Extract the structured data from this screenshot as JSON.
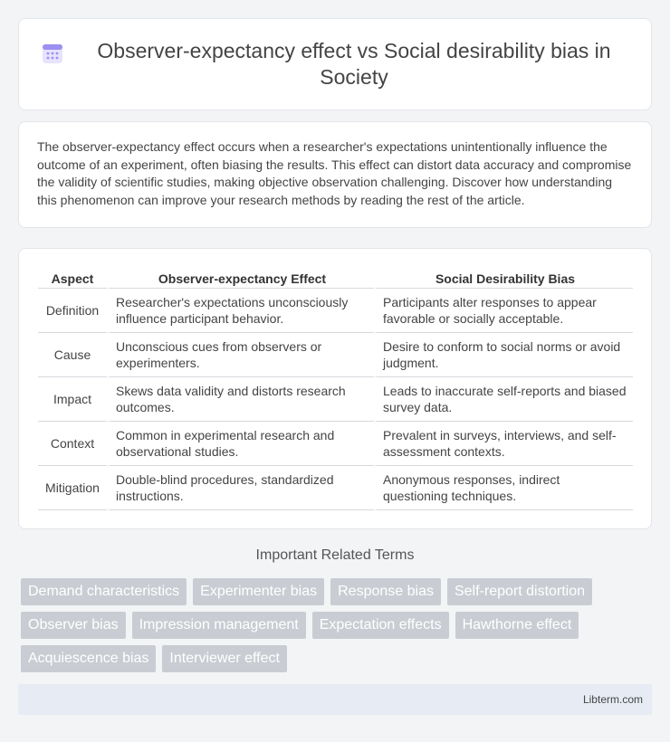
{
  "header": {
    "title": "Observer-expectancy effect vs Social desirability bias in Society",
    "icon": "calendar-icon"
  },
  "intro": {
    "text": "The observer-expectancy effect occurs when a researcher's expectations unintentionally influence the outcome of an experiment, often biasing the results. This effect can distort data accuracy and compromise the validity of scientific studies, making objective observation challenging. Discover how understanding this phenomenon can improve your research methods by reading the rest of the article."
  },
  "table": {
    "headers": [
      "Aspect",
      "Observer-expectancy Effect",
      "Social Desirability Bias"
    ],
    "rows": [
      [
        "Definition",
        "Researcher's expectations unconsciously influence participant behavior.",
        "Participants alter responses to appear favorable or socially acceptable."
      ],
      [
        "Cause",
        "Unconscious cues from observers or experimenters.",
        "Desire to conform to social norms or avoid judgment."
      ],
      [
        "Impact",
        "Skews data validity and distorts research outcomes.",
        "Leads to inaccurate self-reports and biased survey data."
      ],
      [
        "Context",
        "Common in experimental research and observational studies.",
        "Prevalent in surveys, interviews, and self-assessment contexts."
      ],
      [
        "Mitigation",
        "Double-blind procedures, standardized instructions.",
        "Anonymous responses, indirect questioning techniques."
      ]
    ]
  },
  "related": {
    "title": "Important Related Terms",
    "tags": [
      "Demand characteristics",
      "Experimenter bias",
      "Response bias",
      "Self-report distortion",
      "Observer bias",
      "Impression management",
      "Expectation effects",
      "Hawthorne effect",
      "Acquiescence bias",
      "Interviewer effect"
    ]
  },
  "footer": {
    "text": "Libterm.com"
  },
  "colors": {
    "tag_bg": "#c9cdd3",
    "footer_bg": "#e6ebf4",
    "icon_accent": "#8a7cf0"
  }
}
